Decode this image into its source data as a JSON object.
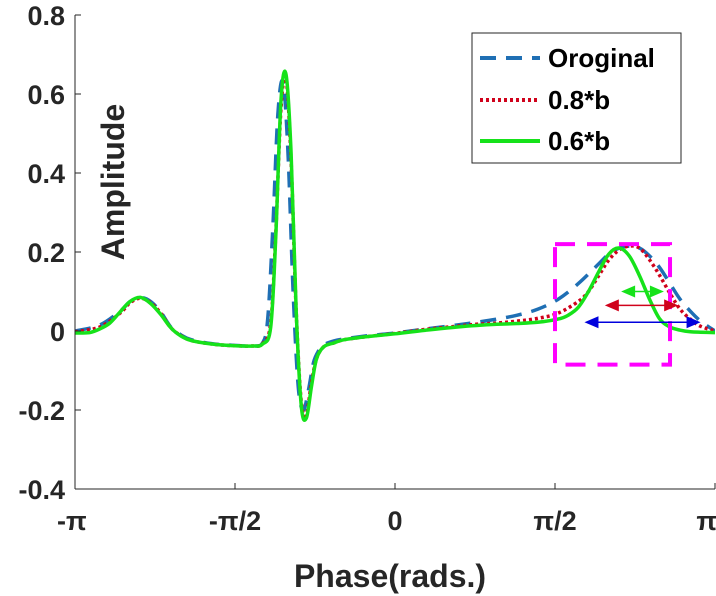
{
  "chart_data": {
    "type": "line",
    "title": "",
    "xlabel": "Phase(rads.)",
    "ylabel": "Amplitude",
    "xlim": [
      -3.1416,
      3.1416
    ],
    "ylim": [
      -0.4,
      0.8
    ],
    "x_ticks": [
      {
        "value": -3.1416,
        "label": "-π"
      },
      {
        "value": -1.5708,
        "label": "-π/2"
      },
      {
        "value": 0,
        "label": "0"
      },
      {
        "value": 1.5708,
        "label": "π/2"
      },
      {
        "value": 3.1416,
        "label": "π"
      }
    ],
    "y_ticks": [
      {
        "value": 0.8,
        "label": "0.8"
      },
      {
        "value": 0.6,
        "label": "0.6"
      },
      {
        "value": 0.4,
        "label": "0.4"
      },
      {
        "value": 0.2,
        "label": "0.2"
      },
      {
        "value": 0,
        "label": "0"
      },
      {
        "value": -0.2,
        "label": "-0.2"
      },
      {
        "value": -0.4,
        "label": "-0.4"
      }
    ],
    "legend_position": "top-right",
    "series": [
      {
        "name": "Oroginal",
        "color": "#1f6fb4",
        "style": "dashed",
        "x": [
          -3.1416,
          -2.9,
          -2.7,
          -2.6,
          -2.5,
          -2.4,
          -2.3,
          -2.2,
          -2.1,
          -2.0,
          -1.8,
          -1.6,
          -1.4,
          -1.3,
          -1.25,
          -1.2,
          -1.15,
          -1.1,
          -1.05,
          -1.0,
          -0.95,
          -0.9,
          -0.85,
          -0.8,
          -0.75,
          -0.7,
          -0.6,
          -0.5,
          -0.3,
          0,
          0.3,
          0.6,
          0.8,
          1.0,
          1.2,
          1.4,
          1.6,
          1.8,
          2.0,
          2.1,
          2.2,
          2.3,
          2.4,
          2.5,
          2.6,
          2.7,
          2.8,
          2.9,
          3.0,
          3.1416
        ],
        "y": [
          0.0,
          0.015,
          0.05,
          0.075,
          0.085,
          0.075,
          0.048,
          0.01,
          -0.01,
          -0.022,
          -0.032,
          -0.036,
          -0.038,
          -0.03,
          0.03,
          0.26,
          0.55,
          0.63,
          0.45,
          0.1,
          -0.14,
          -0.2,
          -0.15,
          -0.08,
          -0.05,
          -0.035,
          -0.025,
          -0.02,
          -0.013,
          -0.005,
          0.005,
          0.015,
          0.022,
          0.03,
          0.04,
          0.055,
          0.08,
          0.12,
          0.17,
          0.195,
          0.21,
          0.215,
          0.21,
          0.19,
          0.16,
          0.12,
          0.08,
          0.05,
          0.025,
          0.0
        ]
      },
      {
        "name": "0.8*b",
        "color": "#d0021b",
        "style": "dotted",
        "x": [
          -3.1416,
          -2.9,
          -2.7,
          -2.6,
          -2.5,
          -2.4,
          -2.3,
          -2.2,
          -2.1,
          -2.0,
          -1.8,
          -1.6,
          -1.4,
          -1.3,
          -1.22,
          -1.17,
          -1.12,
          -1.07,
          -1.02,
          -0.97,
          -0.92,
          -0.87,
          -0.82,
          -0.77,
          -0.7,
          -0.6,
          -0.5,
          -0.3,
          0,
          0.3,
          0.6,
          0.8,
          1.0,
          1.2,
          1.4,
          1.6,
          1.8,
          1.9,
          2.0,
          2.1,
          2.2,
          2.3,
          2.4,
          2.5,
          2.6,
          2.7,
          2.8,
          2.9,
          3.0,
          3.1416
        ],
        "y": [
          -0.002,
          0.01,
          0.045,
          0.072,
          0.083,
          0.072,
          0.045,
          0.008,
          -0.012,
          -0.024,
          -0.033,
          -0.037,
          -0.038,
          -0.032,
          0.02,
          0.25,
          0.56,
          0.64,
          0.43,
          0.05,
          -0.18,
          -0.21,
          -0.13,
          -0.07,
          -0.04,
          -0.03,
          -0.022,
          -0.015,
          -0.006,
          0.004,
          0.012,
          0.017,
          0.02,
          0.025,
          0.032,
          0.045,
          0.075,
          0.1,
          0.14,
          0.18,
          0.205,
          0.215,
          0.21,
          0.18,
          0.14,
          0.095,
          0.055,
          0.03,
          0.012,
          0.0
        ]
      },
      {
        "name": "0.6*b",
        "color": "#16e21a",
        "style": "solid",
        "x": [
          -3.1416,
          -3.0,
          -2.9,
          -2.8,
          -2.7,
          -2.6,
          -2.5,
          -2.4,
          -2.3,
          -2.2,
          -2.1,
          -2.0,
          -1.8,
          -1.6,
          -1.4,
          -1.3,
          -1.22,
          -1.17,
          -1.12,
          -1.07,
          -1.02,
          -0.97,
          -0.92,
          -0.87,
          -0.82,
          -0.77,
          -0.7,
          -0.6,
          -0.5,
          -0.3,
          0,
          0.3,
          0.6,
          0.8,
          1.0,
          1.2,
          1.4,
          1.6,
          1.7,
          1.8,
          1.9,
          2.0,
          2.1,
          2.2,
          2.3,
          2.4,
          2.5,
          2.6,
          2.7,
          2.8,
          2.9,
          3.0,
          3.1416
        ],
        "y": [
          -0.005,
          -0.004,
          0.005,
          0.02,
          0.048,
          0.075,
          0.085,
          0.07,
          0.042,
          0.008,
          -0.013,
          -0.024,
          -0.033,
          -0.037,
          -0.038,
          -0.033,
          0.01,
          0.24,
          0.58,
          0.65,
          0.45,
          0.05,
          -0.19,
          -0.22,
          -0.14,
          -0.07,
          -0.04,
          -0.03,
          -0.022,
          -0.015,
          -0.007,
          0.002,
          0.01,
          0.014,
          0.017,
          0.019,
          0.022,
          0.03,
          0.04,
          0.06,
          0.1,
          0.15,
          0.195,
          0.21,
          0.19,
          0.14,
          0.08,
          0.03,
          0.01,
          0.002,
          -0.002,
          -0.003,
          -0.004
        ]
      }
    ],
    "annotations": {
      "box_color": "#ff00ff",
      "box_x": [
        1.5708,
        2.7
      ],
      "box_y": [
        -0.085,
        0.22
      ],
      "arrows": [
        {
          "color": "#16e21a",
          "x": [
            2.22,
            2.64
          ],
          "y": 0.1
        },
        {
          "color": "#d0021b",
          "x": [
            2.06,
            2.78
          ],
          "y": 0.065
        },
        {
          "color": "#0000dd",
          "x": [
            1.86,
            3.0
          ],
          "y": 0.022
        }
      ]
    }
  }
}
